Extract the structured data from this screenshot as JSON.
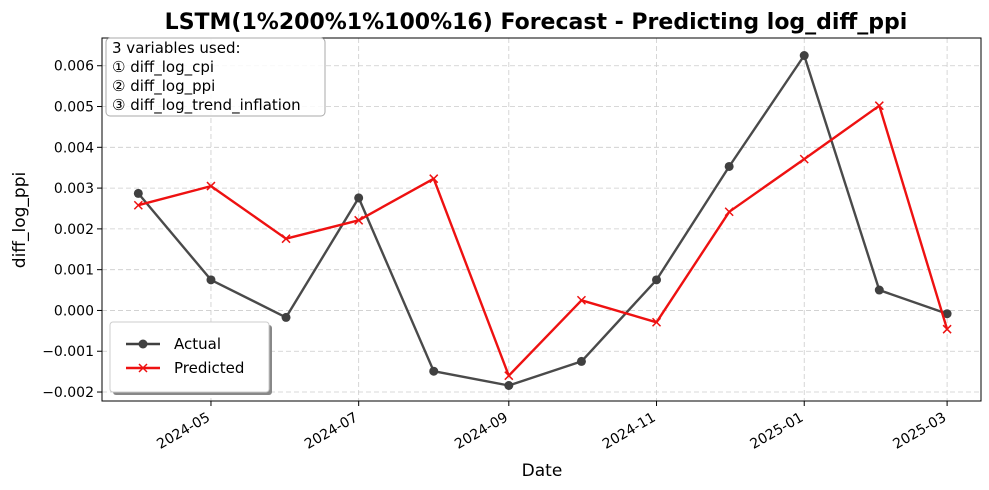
{
  "chart_data": {
    "type": "line",
    "title": "LSTM(1%200%1%100%16) Forecast - Predicting log_diff_ppi",
    "xlabel": "Date",
    "ylabel": "diff_log_ppi",
    "x": [
      "2024-04-01",
      "2024-05-01",
      "2024-06-01",
      "2024-07-01",
      "2024-08-01",
      "2024-09-01",
      "2024-10-01",
      "2024-11-01",
      "2024-12-01",
      "2025-01-01",
      "2025-02-01",
      "2025-03-01"
    ],
    "xticks": [
      "2024-05",
      "2024-07",
      "2024-09",
      "2024-11",
      "2025-01",
      "2025-03"
    ],
    "yticks": [
      "0.006",
      "0.005",
      "0.004",
      "0.003",
      "0.002",
      "0.001",
      "0.000",
      "−0.001",
      "−0.002"
    ],
    "ylim": [
      -0.00222,
      0.00668
    ],
    "grid": true,
    "legend_position": "lower-left",
    "series": [
      {
        "name": "Actual",
        "color": "#404040",
        "marker": "circle",
        "values": [
          0.00287,
          0.00075,
          -0.00017,
          0.00276,
          -0.00149,
          -0.00184,
          -0.00125,
          0.00075,
          0.00353,
          0.00625,
          0.0005,
          -8e-05
        ]
      },
      {
        "name": "Predicted",
        "color": "#ee1111",
        "marker": "x",
        "values": [
          0.00258,
          0.00305,
          0.00176,
          0.00221,
          0.00323,
          -0.0016,
          0.00025,
          -0.00029,
          0.00242,
          0.00371,
          0.00502,
          -0.00046
        ]
      }
    ],
    "annotation": {
      "lines": [
        "3 variables used:",
        "① diff_log_cpi",
        "② diff_log_ppi",
        "③ diff_log_trend_inflation"
      ]
    }
  }
}
